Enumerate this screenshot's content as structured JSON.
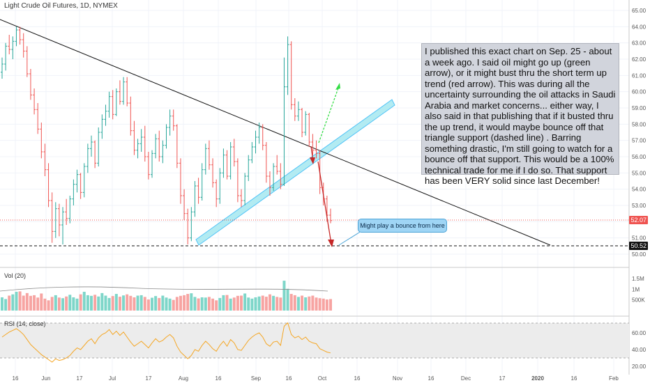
{
  "title": "Light Crude Oil Futures, 1D, NYMEX",
  "note": "I published this exact chart on Sep. 25 - about a week ago. I said oil might go up (green arrow), or it might bust thru the short term up trend (red arrow). This was during all the uncertainty surrounding the oil attacks in Saudi Arabia and market concerns... either way, I also said in that publishing that if it busted thru the up trend, it would maybe bounce off that triangle support (dashed line) . Barring something drastic, I'm still going to watch for a bounce off that support. This would be a 100% technical trade for me if I do so. That support has been VERY solid since last December!",
  "callout": "Might play a bounce from here",
  "volume_label": "Vol (20)",
  "rsi_label": "RSI (14, close)",
  "price_badge_current": "52.07",
  "price_badge_support": "50.52",
  "colors": {
    "up": "#26a69a",
    "down": "#ef5350",
    "trend": "#000000",
    "band": "#b2ebf2",
    "rsi": "#f5a623"
  },
  "chart_data": [
    {
      "type": "candlestick",
      "y_axis_ticks": [
        "65.00",
        "64.00",
        "63.00",
        "62.00",
        "61.00",
        "60.00",
        "59.00",
        "58.00",
        "57.00",
        "56.00",
        "55.00",
        "54.00",
        "53.00",
        "52.00",
        "51.00",
        "50.00"
      ],
      "ylim": [
        49.3,
        65.5
      ],
      "x_axis_ticks": [
        "16",
        "Jun",
        "17",
        "Jul",
        "17",
        "Aug",
        "16",
        "Sep",
        "16",
        "Oct",
        "16",
        "Nov",
        "16",
        "Dec",
        "17",
        "2020",
        "16",
        "Feb"
      ],
      "current_price": 52.07,
      "support_level": 50.52,
      "ohlc": [
        [
          61.2,
          62.1,
          60.8,
          61.7
        ],
        [
          61.7,
          63.0,
          61.3,
          62.8
        ],
        [
          62.8,
          63.5,
          62.3,
          62.6
        ],
        [
          62.6,
          63.4,
          62.0,
          63.1
        ],
        [
          63.1,
          64.0,
          62.8,
          63.8
        ],
        [
          63.8,
          64.0,
          62.9,
          63.2
        ],
        [
          63.2,
          63.6,
          62.1,
          62.5
        ],
        [
          62.5,
          62.8,
          60.9,
          61.1
        ],
        [
          61.1,
          61.4,
          59.5,
          59.8
        ],
        [
          59.8,
          60.2,
          58.6,
          58.9
        ],
        [
          58.9,
          59.3,
          57.4,
          57.7
        ],
        [
          57.7,
          58.1,
          55.9,
          56.3
        ],
        [
          56.3,
          56.8,
          54.8,
          55.2
        ],
        [
          55.2,
          55.6,
          52.9,
          53.3
        ],
        [
          53.3,
          53.8,
          50.7,
          51.4
        ],
        [
          51.4,
          53.2,
          51.0,
          52.8
        ],
        [
          52.8,
          53.1,
          51.1,
          51.8
        ],
        [
          51.8,
          52.9,
          50.6,
          52.6
        ],
        [
          52.6,
          53.4,
          51.8,
          52.2
        ],
        [
          52.2,
          53.6,
          51.9,
          53.4
        ],
        [
          53.4,
          54.6,
          53.0,
          54.3
        ],
        [
          54.3,
          55.2,
          53.8,
          54.9
        ],
        [
          54.9,
          55.0,
          53.4,
          53.8
        ],
        [
          53.8,
          55.6,
          53.5,
          55.4
        ],
        [
          55.4,
          56.8,
          55.0,
          56.5
        ],
        [
          56.5,
          57.3,
          56.0,
          56.9
        ],
        [
          56.9,
          57.0,
          55.3,
          55.6
        ],
        [
          55.6,
          57.8,
          55.4,
          57.5
        ],
        [
          57.5,
          58.6,
          57.1,
          58.3
        ],
        [
          58.3,
          59.2,
          57.9,
          58.8
        ],
        [
          58.8,
          60.0,
          58.4,
          59.7
        ],
        [
          59.7,
          60.1,
          58.3,
          58.6
        ],
        [
          58.6,
          60.2,
          58.5,
          60.0
        ],
        [
          60.0,
          60.7,
          59.2,
          59.4
        ],
        [
          59.4,
          60.9,
          59.2,
          60.6
        ],
        [
          60.6,
          60.9,
          59.1,
          59.3
        ],
        [
          59.3,
          59.7,
          57.3,
          57.6
        ],
        [
          57.6,
          58.2,
          56.1,
          56.4
        ],
        [
          56.4,
          57.1,
          55.9,
          56.8
        ],
        [
          56.8,
          57.7,
          56.3,
          57.2
        ],
        [
          57.2,
          57.9,
          55.7,
          56.0
        ],
        [
          56.0,
          56.3,
          54.6,
          54.9
        ],
        [
          54.9,
          56.4,
          54.7,
          56.2
        ],
        [
          56.2,
          57.4,
          55.9,
          57.1
        ],
        [
          57.1,
          57.6,
          55.7,
          56.0
        ],
        [
          56.0,
          57.0,
          55.6,
          56.7
        ],
        [
          56.7,
          58.0,
          56.5,
          57.8
        ],
        [
          57.8,
          58.9,
          57.3,
          58.5
        ],
        [
          58.5,
          58.9,
          57.6,
          57.9
        ],
        [
          57.9,
          58.0,
          55.3,
          55.6
        ],
        [
          55.6,
          55.9,
          53.1,
          53.6
        ],
        [
          53.6,
          54.0,
          52.1,
          52.5
        ],
        [
          52.5,
          52.8,
          50.6,
          51.0
        ],
        [
          51.0,
          52.9,
          50.8,
          52.6
        ],
        [
          52.6,
          54.5,
          52.3,
          54.2
        ],
        [
          54.2,
          54.7,
          53.1,
          53.5
        ],
        [
          53.5,
          55.6,
          53.3,
          55.2
        ],
        [
          55.2,
          56.8,
          54.9,
          56.5
        ],
        [
          56.5,
          57.0,
          55.2,
          55.5
        ],
        [
          55.5,
          55.9,
          54.1,
          54.4
        ],
        [
          54.4,
          54.6,
          52.9,
          53.4
        ],
        [
          53.4,
          55.3,
          53.1,
          55.0
        ],
        [
          55.0,
          56.5,
          54.7,
          56.1
        ],
        [
          56.1,
          56.4,
          54.6,
          54.8
        ],
        [
          54.8,
          56.9,
          54.6,
          56.6
        ],
        [
          56.6,
          57.1,
          55.4,
          55.7
        ],
        [
          55.7,
          55.9,
          53.2,
          53.6
        ],
        [
          53.6,
          54.0,
          52.9,
          53.3
        ],
        [
          53.3,
          55.0,
          53.0,
          54.8
        ],
        [
          54.8,
          56.1,
          54.5,
          55.8
        ],
        [
          55.8,
          56.9,
          55.6,
          56.6
        ],
        [
          56.6,
          57.6,
          56.2,
          57.2
        ],
        [
          57.2,
          58.1,
          56.8,
          57.8
        ],
        [
          57.8,
          58.0,
          56.4,
          56.7
        ],
        [
          56.7,
          56.9,
          54.4,
          54.8
        ],
        [
          54.8,
          55.1,
          53.6,
          54.1
        ],
        [
          54.1,
          55.6,
          53.9,
          55.4
        ],
        [
          55.4,
          56.1,
          54.9,
          55.1
        ],
        [
          55.1,
          55.6,
          54.0,
          54.3
        ],
        [
          54.3,
          62.1,
          54.2,
          60.3
        ],
        [
          60.3,
          63.4,
          59.8,
          62.9
        ],
        [
          62.9,
          63.1,
          58.9,
          59.2
        ],
        [
          59.2,
          59.6,
          58.2,
          58.5
        ],
        [
          58.5,
          59.4,
          58.2,
          58.9
        ],
        [
          58.9,
          59.0,
          57.2,
          57.5
        ],
        [
          57.5,
          58.8,
          57.3,
          58.6
        ],
        [
          58.6,
          58.7,
          56.6,
          56.9
        ],
        [
          56.9,
          57.4,
          56.1,
          56.4
        ],
        [
          56.4,
          57.0,
          55.9,
          56.2
        ],
        [
          56.2,
          56.4,
          53.7,
          54.1
        ],
        [
          54.1,
          54.4,
          53.0,
          53.4
        ],
        [
          53.4,
          53.6,
          52.0,
          52.4
        ],
        [
          52.4,
          52.8,
          51.9,
          52.07
        ]
      ],
      "volume_ticks": [
        "1.5M",
        "1M",
        "500K"
      ],
      "volume": [
        620,
        540,
        700,
        760,
        880,
        900,
        700,
        820,
        690,
        720,
        610,
        800,
        560,
        480,
        640,
        720,
        610,
        580,
        660,
        740,
        620,
        560,
        760,
        880,
        720,
        690,
        740,
        660,
        820,
        700,
        590,
        680,
        780,
        650,
        710,
        760,
        690,
        620,
        700,
        720,
        640,
        520,
        600,
        680,
        590,
        700,
        610,
        560,
        500,
        640,
        690,
        720,
        780,
        810,
        640,
        570,
        620,
        610,
        640,
        560,
        480,
        590,
        720,
        730,
        560,
        610,
        690,
        700,
        800,
        610,
        560,
        620,
        660,
        700,
        650,
        760,
        690,
        640,
        610,
        1400,
        1020,
        780,
        720,
        640,
        700,
        620,
        660,
        700,
        610,
        580,
        560,
        520,
        540
      ],
      "rsi_ticks": [
        "60.00",
        "40.00",
        "20.00"
      ],
      "rsi": [
        55,
        58,
        61,
        63,
        65,
        62,
        58,
        52,
        46,
        42,
        38,
        34,
        31,
        28,
        25,
        29,
        27,
        28,
        30,
        33,
        38,
        42,
        40,
        45,
        50,
        53,
        47,
        54,
        58,
        60,
        64,
        58,
        62,
        57,
        61,
        55,
        49,
        44,
        47,
        50,
        46,
        42,
        48,
        53,
        49,
        51,
        55,
        58,
        54,
        44,
        37,
        33,
        29,
        33,
        40,
        38,
        45,
        50,
        46,
        41,
        38,
        45,
        50,
        44,
        52,
        48,
        40,
        39,
        45,
        51,
        55,
        58,
        60,
        55,
        47,
        44,
        49,
        50,
        45,
        68,
        72,
        58,
        54,
        56,
        52,
        55,
        50,
        48,
        47,
        41,
        39,
        37,
        36
      ]
    }
  ]
}
